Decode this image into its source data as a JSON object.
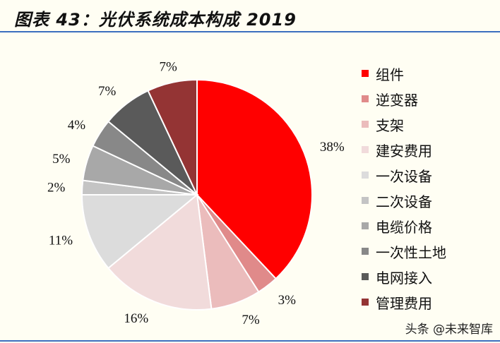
{
  "chart_data": {
    "type": "pie",
    "title": "图表 43：光伏系统成本构成 2019",
    "slices": [
      {
        "label": "组件",
        "value": 38,
        "text": "38%",
        "color": "#ff0000"
      },
      {
        "label": "逆变器",
        "value": 3,
        "text": "3%",
        "color": "#e08a8a"
      },
      {
        "label": "支架",
        "value": 7,
        "text": "7%",
        "color": "#ebbcbc"
      },
      {
        "label": "建安费用",
        "value": 16,
        "text": "16%",
        "color": "#f1dbdb"
      },
      {
        "label": "一次设备",
        "value": 11,
        "text": "11%",
        "color": "#dcdcdc"
      },
      {
        "label": "二次设备",
        "value": 2,
        "text": "2%",
        "color": "#c4c4c4"
      },
      {
        "label": "电缆价格",
        "value": 5,
        "text": "5%",
        "color": "#a8a8a8"
      },
      {
        "label": "一次性土地",
        "value": 4,
        "text": "4%",
        "color": "#888888"
      },
      {
        "label": "电网接入",
        "value": 7,
        "text": "7%",
        "color": "#5a5a5a"
      },
      {
        "label": "管理费用",
        "value": 7,
        "text": "7%",
        "color": "#943434"
      }
    ],
    "legend_position": "right"
  },
  "watermark": "头条 @未来智库"
}
